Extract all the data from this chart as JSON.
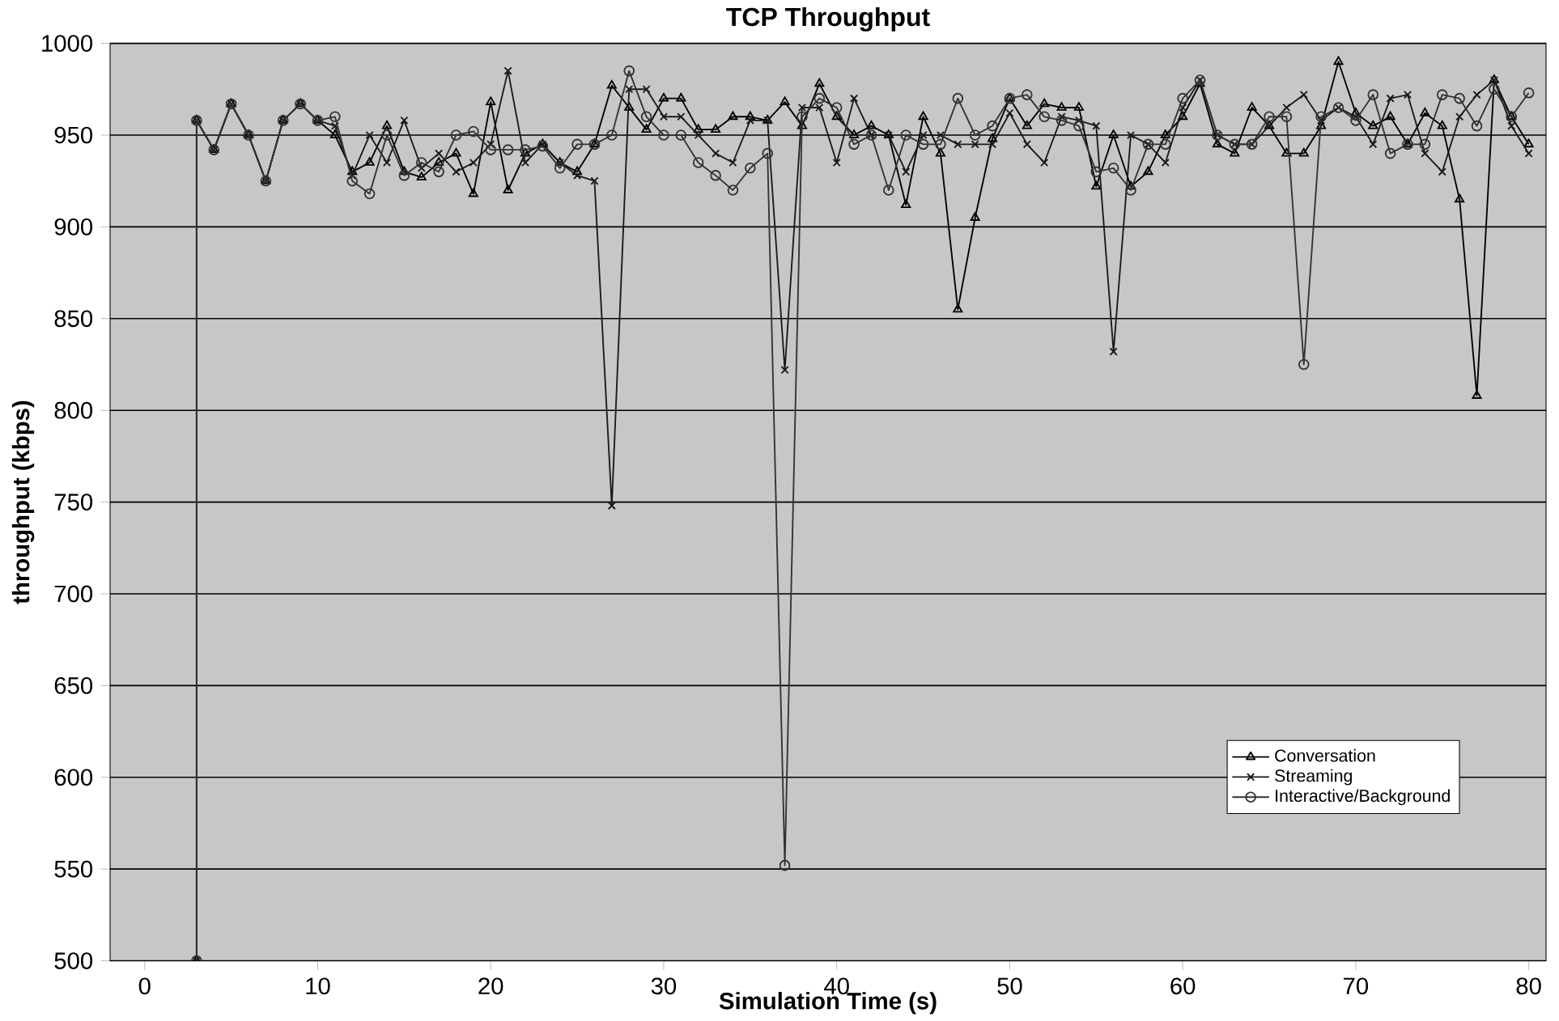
{
  "chart_data": {
    "type": "line",
    "title": "TCP Throughput",
    "xlabel": "Simulation Time (s)",
    "ylabel": "throughput (kbps)",
    "x": [
      3,
      3,
      4,
      5,
      6,
      7,
      8,
      9,
      10,
      11,
      12,
      13,
      14,
      15,
      16,
      17,
      18,
      19,
      20,
      21,
      22,
      23,
      24,
      25,
      26,
      27,
      28,
      29,
      30,
      31,
      32,
      33,
      34,
      35,
      36,
      37,
      38,
      39,
      40,
      41,
      42,
      43,
      44,
      45,
      46,
      47,
      48,
      49,
      50,
      51,
      52,
      53,
      54,
      55,
      56,
      57,
      58,
      59,
      60,
      61,
      62,
      63,
      64,
      65,
      66,
      67,
      68,
      69,
      70,
      71,
      72,
      73,
      74,
      75,
      76,
      77,
      78,
      79,
      80
    ],
    "xlim": [
      -2,
      81
    ],
    "xticks": [
      0,
      10,
      20,
      30,
      40,
      50,
      60,
      70,
      80
    ],
    "ylim": [
      500,
      1000
    ],
    "yticks": [
      500,
      550,
      600,
      650,
      700,
      750,
      800,
      850,
      900,
      950,
      1000
    ],
    "grid": "y",
    "legend": "bottom right",
    "line_style": "solid",
    "series": [
      {
        "name": "Conversation",
        "color": "#000000",
        "marker": "triangle",
        "values": [
          500,
          958,
          942,
          967,
          950,
          925,
          958,
          967,
          958,
          950,
          930,
          935,
          955,
          930,
          927,
          935,
          940,
          918,
          968,
          920,
          940,
          945,
          935,
          930,
          945,
          977,
          965,
          953,
          970,
          970,
          953,
          953,
          960,
          960,
          958,
          968,
          955,
          978,
          960,
          950,
          955,
          950,
          912,
          960,
          940,
          855,
          905,
          948,
          970,
          955,
          967,
          965,
          965,
          922,
          950,
          922,
          930,
          950,
          960,
          978,
          945,
          940,
          965,
          955,
          940,
          940,
          955,
          990,
          962,
          955,
          960,
          945,
          962,
          955,
          915,
          808,
          980,
          960,
          945
        ]
      },
      {
        "name": "Streaming",
        "color": "#1a1a1a",
        "marker": "cross",
        "values": [
          500,
          958,
          942,
          967,
          950,
          925,
          958,
          967,
          958,
          955,
          928,
          950,
          935,
          958,
          932,
          940,
          930,
          935,
          945,
          985,
          935,
          945,
          935,
          928,
          925,
          748,
          975,
          975,
          960,
          960,
          950,
          940,
          935,
          958,
          958,
          822,
          965,
          965,
          935,
          970,
          950,
          950,
          930,
          950,
          950,
          945,
          945,
          945,
          962,
          945,
          935,
          960,
          958,
          955,
          832,
          950,
          945,
          935,
          965,
          980,
          950,
          945,
          945,
          955,
          965,
          972,
          958,
          965,
          960,
          945,
          970,
          972,
          940,
          930,
          960,
          972,
          980,
          955,
          940
        ]
      },
      {
        "name": "Interactive/Background",
        "color": "#333333",
        "marker": "circle",
        "values": [
          500,
          958,
          942,
          967,
          950,
          925,
          958,
          967,
          958,
          960,
          925,
          918,
          950,
          928,
          935,
          930,
          950,
          952,
          942,
          942,
          942,
          944,
          932,
          945,
          945,
          950,
          985,
          960,
          950,
          950,
          935,
          928,
          920,
          932,
          940,
          552,
          960,
          970,
          965,
          945,
          950,
          920,
          950,
          945,
          945,
          970,
          950,
          955,
          970,
          972,
          960,
          958,
          955,
          930,
          932,
          920,
          945,
          945,
          970,
          980,
          950,
          945,
          945,
          960,
          960,
          825,
          960,
          965,
          958,
          972,
          940,
          945,
          945,
          972,
          970,
          955,
          975,
          960,
          973
        ]
      }
    ]
  }
}
